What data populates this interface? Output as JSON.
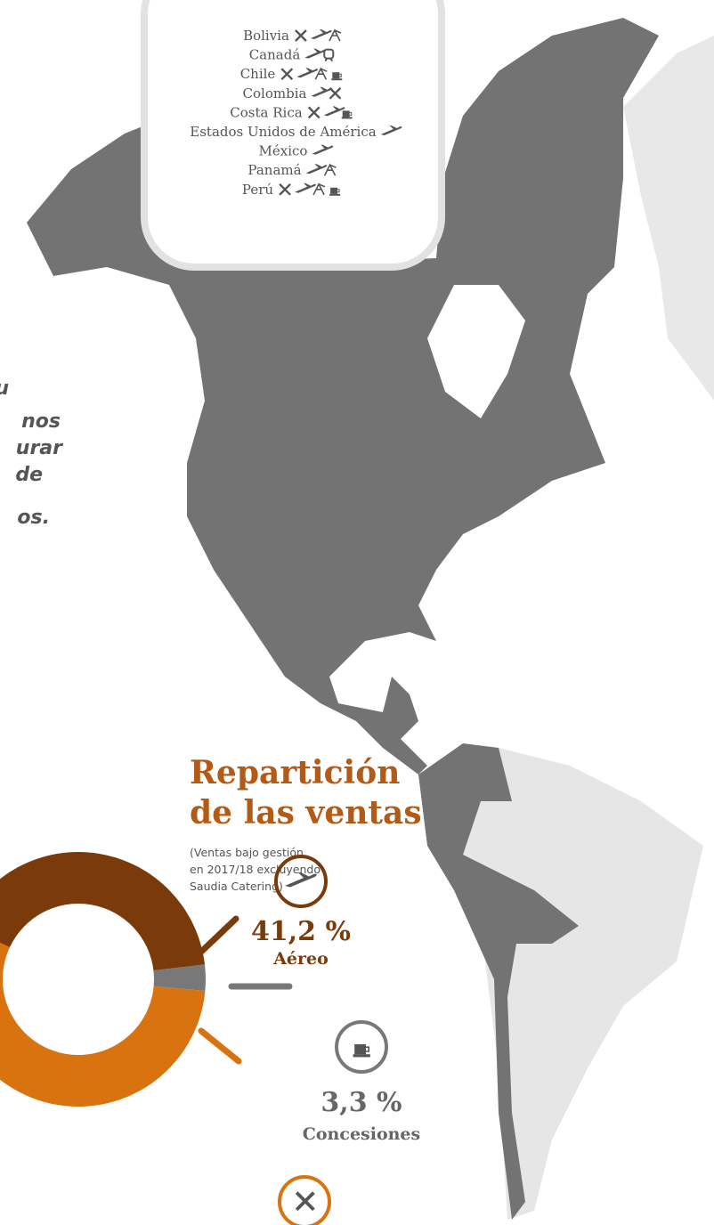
{
  "countries": [
    "Bolivia",
    "Canadá",
    "Chile",
    "Colombia",
    "Costa Rica",
    "Estados Unidos de América",
    "México",
    "Panamá",
    "Perú"
  ],
  "quote": [
    "u",
    "nos",
    "urar",
    "de",
    "os."
  ],
  "chart_data": {
    "type": "donut",
    "title": [
      "Repartición",
      "de las ventas"
    ],
    "subtitle": [
      "(Ventas bajo gestión",
      "en 2017/18 excluyendo",
      "Saudia Catering)"
    ],
    "categories": [
      "Aéreo",
      "Concesiones",
      null
    ],
    "values": [
      41.2,
      3.3,
      55.5
    ],
    "value_labels": [
      "41,2 %",
      "3,3 %",
      null
    ],
    "series_colors": [
      "#7a3a0a",
      "#787878",
      "#d9730f"
    ]
  }
}
